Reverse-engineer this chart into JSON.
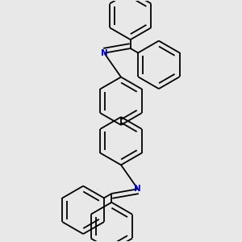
{
  "bg_color": "#e8e8e8",
  "bond_color": "#000000",
  "n_color": "#0000cc",
  "lw": 1.3,
  "dbo": 0.018,
  "figsize": [
    3.0,
    3.0
  ],
  "dpi": 100,
  "R": 0.09
}
